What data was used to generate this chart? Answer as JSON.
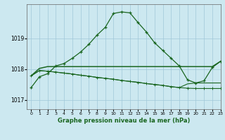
{
  "title": "Graphe pression niveau de la mer (hPa)",
  "bg_color": "#cce8f0",
  "grid_color": "#a0c8d8",
  "line_color": "#1a6620",
  "xlim": [
    -0.5,
    23
  ],
  "ylim": [
    1016.7,
    1020.1
  ],
  "yticks": [
    1017,
    1018,
    1019
  ],
  "xtick_labels": [
    "0",
    "1",
    "2",
    "3",
    "4",
    "5",
    "6",
    "7",
    "8",
    "9",
    "10",
    "11",
    "12",
    "13",
    "14",
    "15",
    "16",
    "17",
    "18",
    "19",
    "20",
    "21",
    "22",
    "23"
  ],
  "series1": [
    1017.4,
    1017.75,
    1017.85,
    1018.1,
    1018.18,
    1018.35,
    1018.55,
    1018.8,
    1019.1,
    1019.35,
    1019.8,
    1019.85,
    1019.82,
    1019.5,
    1019.2,
    1018.85,
    1018.6,
    1018.35,
    1018.1,
    1017.65,
    1017.55,
    1017.62,
    1018.05,
    1018.25
  ],
  "series2": [
    1017.78,
    1018.02,
    1018.08,
    1018.08,
    1018.08,
    1018.08,
    1018.08,
    1018.08,
    1018.08,
    1018.08,
    1018.08,
    1018.08,
    1018.08,
    1018.08,
    1018.08,
    1018.08,
    1018.08,
    1018.08,
    1018.08,
    1018.08,
    1018.08,
    1018.08,
    1018.08,
    1018.25
  ],
  "series3": [
    1017.78,
    1017.95,
    1017.93,
    1017.9,
    1017.87,
    1017.84,
    1017.8,
    1017.77,
    1017.73,
    1017.7,
    1017.67,
    1017.63,
    1017.6,
    1017.57,
    1017.53,
    1017.5,
    1017.47,
    1017.43,
    1017.4,
    1017.38,
    1017.37,
    1017.37,
    1017.37,
    1017.37
  ],
  "series4": [
    1017.78,
    1017.95,
    1017.93,
    1017.9,
    1017.87,
    1017.84,
    1017.8,
    1017.77,
    1017.73,
    1017.7,
    1017.67,
    1017.63,
    1017.6,
    1017.57,
    1017.53,
    1017.5,
    1017.47,
    1017.43,
    1017.4,
    1017.52,
    1017.55,
    1017.55,
    1017.55,
    1017.55
  ]
}
